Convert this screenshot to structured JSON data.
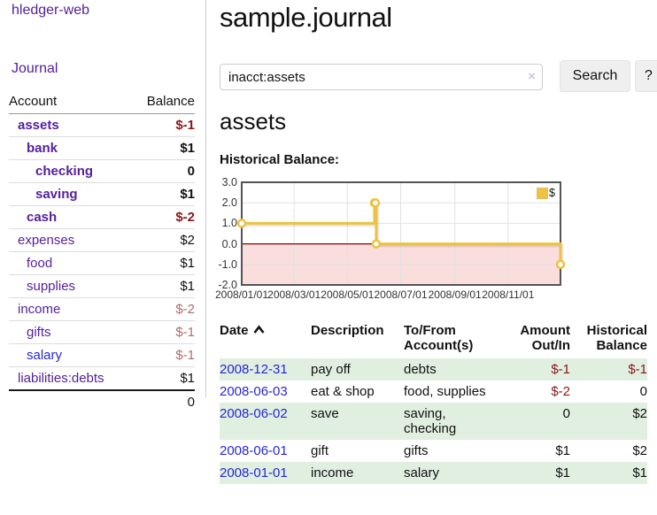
{
  "app": {
    "title": "hledger-web",
    "nav_journal": "Journal"
  },
  "sidebar": {
    "col_account": "Account",
    "col_balance": "Balance",
    "accounts": [
      {
        "label": "assets",
        "depth": 1,
        "bold": true,
        "link": "purple",
        "balance": "$-1",
        "tone": "neg-strong"
      },
      {
        "label": "bank",
        "depth": 2,
        "bold": true,
        "link": "purple",
        "balance": "$1",
        "tone": "pos"
      },
      {
        "label": "checking",
        "depth": 3,
        "bold": true,
        "link": "purple",
        "balance": "0",
        "tone": "pos"
      },
      {
        "label": "saving",
        "depth": 3,
        "bold": true,
        "link": "purple",
        "balance": "$1",
        "tone": "pos"
      },
      {
        "label": "cash",
        "depth": 2,
        "bold": true,
        "link": "purple",
        "balance": "$-2",
        "tone": "neg-strong"
      },
      {
        "label": "expenses",
        "depth": 1,
        "bold": false,
        "link": "purple",
        "balance": "$2",
        "tone": "pos"
      },
      {
        "label": "food",
        "depth": 2,
        "bold": false,
        "link": "purple",
        "balance": "$1",
        "tone": "pos"
      },
      {
        "label": "supplies",
        "depth": 2,
        "bold": false,
        "link": "purple",
        "balance": "$1",
        "tone": "pos"
      },
      {
        "label": "income",
        "depth": 1,
        "bold": false,
        "link": "purple",
        "balance": "$-2",
        "tone": "neg-soft"
      },
      {
        "label": "gifts",
        "depth": 2,
        "bold": false,
        "link": "purple",
        "balance": "$-1",
        "tone": "neg-soft"
      },
      {
        "label": "salary",
        "depth": 2,
        "bold": false,
        "link": "blue",
        "balance": "$-1",
        "tone": "neg-soft"
      },
      {
        "label": "liabilities:debts",
        "depth": 1,
        "bold": false,
        "link": "purple",
        "balance": "$1",
        "tone": "pos"
      }
    ],
    "total": "0"
  },
  "main": {
    "title": "sample.journal",
    "search": {
      "value": "inacct:assets",
      "clear_icon": "×",
      "button": "Search",
      "help_button": "?"
    },
    "account_heading": "assets",
    "chart_label": "Historical Balance:"
  },
  "register": {
    "headers": {
      "date": "Date",
      "description": "Description",
      "account_line1": "To/From",
      "account_line2": "Account(s)",
      "amount_line1": "Amount",
      "amount_line2": "Out/In",
      "balance_line1": "Historical",
      "balance_line2": "Balance"
    },
    "rows": [
      {
        "date": "2008-12-31",
        "description": "pay off",
        "accounts": "debts",
        "amount": "$-1",
        "balance": "$-1"
      },
      {
        "date": "2008-06-03",
        "description": "eat & shop",
        "accounts": "food, supplies",
        "amount": "$-2",
        "balance": "0"
      },
      {
        "date": "2008-06-02",
        "description": "save",
        "accounts": "saving, checking",
        "amount": "0",
        "balance": "$2"
      },
      {
        "date": "2008-06-01",
        "description": "gift",
        "accounts": "gifts",
        "amount": "$1",
        "balance": "$2"
      },
      {
        "date": "2008-01-01",
        "description": "income",
        "accounts": "salary",
        "amount": "$1",
        "balance": "$1"
      }
    ]
  },
  "chart_data": {
    "type": "line",
    "step": true,
    "title": "Historical Balance",
    "series": [
      {
        "name": "$",
        "color": "#edc240",
        "points": [
          [
            "2008-01-01",
            1
          ],
          [
            "2008-06-01",
            2
          ],
          [
            "2008-06-02",
            2
          ],
          [
            "2008-06-03",
            0
          ],
          [
            "2008-12-31",
            -1
          ]
        ]
      }
    ],
    "xlim": [
      "2008-01-01",
      "2008-12-31"
    ],
    "ylim": [
      -2,
      3
    ],
    "y_ticks": [
      {
        "value": 3,
        "label": "3.0"
      },
      {
        "value": 2,
        "label": "2.0"
      },
      {
        "value": 1,
        "label": "1.0"
      },
      {
        "value": 0,
        "label": "0.0"
      },
      {
        "value": -1,
        "label": "-1.0"
      },
      {
        "value": -2,
        "label": "-2.0"
      }
    ],
    "x_ticks": [
      {
        "date": "2008-01-01",
        "label": "2008/01/01"
      },
      {
        "date": "2008-03-01",
        "label": "2008/03/01"
      },
      {
        "date": "2008-05-01",
        "label": "2008/05/01"
      },
      {
        "date": "2008-07-01",
        "label": "2008/07/01"
      },
      {
        "date": "2008-09-01",
        "label": "2008/09/01"
      },
      {
        "date": "2008-11-01",
        "label": "2008/11/01"
      }
    ],
    "grid": true,
    "legend_position": "top-right",
    "legend": {
      "label": "$"
    },
    "colors": {
      "negative_region": "#fadddd",
      "zero_line": "#8b0000",
      "grid": "#e2e2e2",
      "border": "#545454"
    }
  }
}
